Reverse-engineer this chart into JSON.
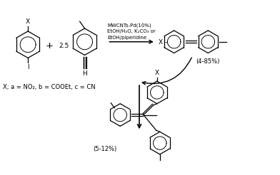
{
  "background_color": "#ffffff",
  "figsize": [
    3.92,
    2.46
  ],
  "dpi": 100,
  "reaction_conditions": "MWCNTs-Pd(10%)\nEtOH/H₂O, K₂CO₃ or\nEtOH/piperidine",
  "yield_main": "(4-85%)",
  "yield_side": "(5-12%)",
  "x_label": "X",
  "x_def": "X; a = NO₂, b = COOEt, c = CN",
  "plus_25": "2.5",
  "iodine_label": "I",
  "hydrogen_label": "H",
  "line_color": "#000000",
  "line_width": 0.9,
  "font_size": 6.5,
  "font_size_small": 6.0,
  "font_size_cond": 5.0
}
